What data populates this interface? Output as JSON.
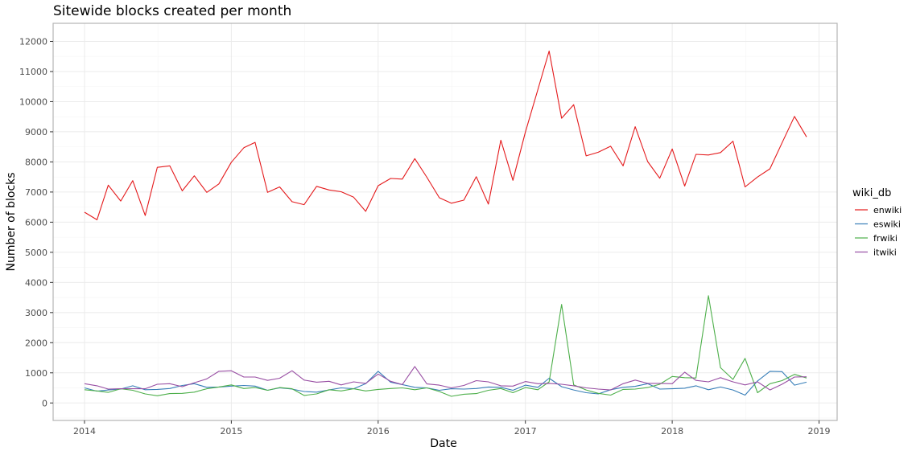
{
  "chart_data": {
    "type": "line",
    "title": "Sitewide blocks created per month",
    "xlabel": "Date",
    "ylabel": "Number of blocks",
    "x": [
      "2014-01",
      "2014-02",
      "2014-03",
      "2014-04",
      "2014-05",
      "2014-06",
      "2014-07",
      "2014-08",
      "2014-09",
      "2014-10",
      "2014-11",
      "2014-12",
      "2015-01",
      "2015-02",
      "2015-03",
      "2015-04",
      "2015-05",
      "2015-06",
      "2015-07",
      "2015-08",
      "2015-09",
      "2015-10",
      "2015-11",
      "2015-12",
      "2016-01",
      "2016-02",
      "2016-03",
      "2016-04",
      "2016-05",
      "2016-06",
      "2016-07",
      "2016-08",
      "2016-09",
      "2016-10",
      "2016-11",
      "2016-12",
      "2017-01",
      "2017-02",
      "2017-03",
      "2017-04",
      "2017-05",
      "2017-06",
      "2017-07",
      "2017-08",
      "2017-09",
      "2017-10",
      "2017-11",
      "2017-12",
      "2018-01",
      "2018-02",
      "2018-03",
      "2018-04",
      "2018-05",
      "2018-06",
      "2018-07",
      "2018-08",
      "2018-09",
      "2018-10",
      "2018-11",
      "2018-12"
    ],
    "x_ticks": [
      "2014",
      "2015",
      "2016",
      "2017",
      "2018",
      "2019"
    ],
    "xlim": [
      "2013-10-15",
      "2019-02-15"
    ],
    "y_ticks": [
      0,
      1000,
      2000,
      3000,
      4000,
      5000,
      6000,
      7000,
      8000,
      9000,
      10000,
      11000,
      12000
    ],
    "ylim": [
      -580,
      12600
    ],
    "grid": true,
    "legend_title": "wiki_db",
    "legend_position": "right",
    "series": [
      {
        "name": "enwiki",
        "color": "#e41a1c",
        "values": [
          6330,
          6080,
          7230,
          6700,
          7380,
          6220,
          7820,
          7870,
          7040,
          7540,
          6990,
          7270,
          7990,
          8470,
          8650,
          6990,
          7170,
          6680,
          6580,
          7190,
          7070,
          7010,
          6830,
          6360,
          7210,
          7450,
          7430,
          8110,
          7490,
          6810,
          6630,
          6730,
          7510,
          6600,
          8720,
          7390,
          8990,
          10400,
          11680,
          9450,
          9900,
          8200,
          8320,
          8520,
          7870,
          9170,
          8010,
          7460,
          8430,
          7200,
          8250,
          8230,
          8310,
          8690,
          7170,
          7500,
          7770,
          8630,
          9510,
          8830
        ]
      },
      {
        "name": "eswiki",
        "color": "#377eb8",
        "values": [
          500,
          390,
          430,
          460,
          570,
          440,
          450,
          480,
          580,
          640,
          520,
          530,
          560,
          580,
          560,
          420,
          500,
          460,
          380,
          360,
          430,
          500,
          470,
          640,
          1050,
          690,
          610,
          520,
          500,
          420,
          470,
          460,
          480,
          530,
          520,
          420,
          590,
          520,
          820,
          540,
          430,
          340,
          300,
          440,
          520,
          550,
          640,
          460,
          470,
          490,
          570,
          440,
          530,
          430,
          260,
          730,
          1050,
          1040,
          590,
          690
        ]
      },
      {
        "name": "frwiki",
        "color": "#4daf4a",
        "values": [
          440,
          400,
          350,
          470,
          420,
          300,
          240,
          310,
          320,
          360,
          470,
          530,
          600,
          480,
          510,
          420,
          510,
          470,
          250,
          300,
          440,
          400,
          470,
          400,
          450,
          480,
          500,
          440,
          500,
          380,
          220,
          290,
          310,
          420,
          480,
          340,
          510,
          440,
          700,
          3270,
          600,
          430,
          320,
          260,
          450,
          460,
          510,
          620,
          880,
          840,
          830,
          3560,
          1170,
          780,
          1480,
          340,
          640,
          740,
          950,
          830
        ]
      },
      {
        "name": "itwiki",
        "color": "#984ea3",
        "values": [
          640,
          570,
          460,
          470,
          470,
          470,
          620,
          640,
          540,
          670,
          800,
          1050,
          1070,
          860,
          860,
          750,
          820,
          1070,
          760,
          690,
          720,
          600,
          700,
          650,
          960,
          720,
          610,
          1210,
          630,
          590,
          500,
          580,
          740,
          700,
          570,
          560,
          710,
          640,
          650,
          620,
          570,
          500,
          460,
          430,
          640,
          760,
          650,
          650,
          640,
          1020,
          750,
          700,
          840,
          700,
          600,
          700,
          430,
          620,
          860,
          870
        ]
      }
    ]
  }
}
